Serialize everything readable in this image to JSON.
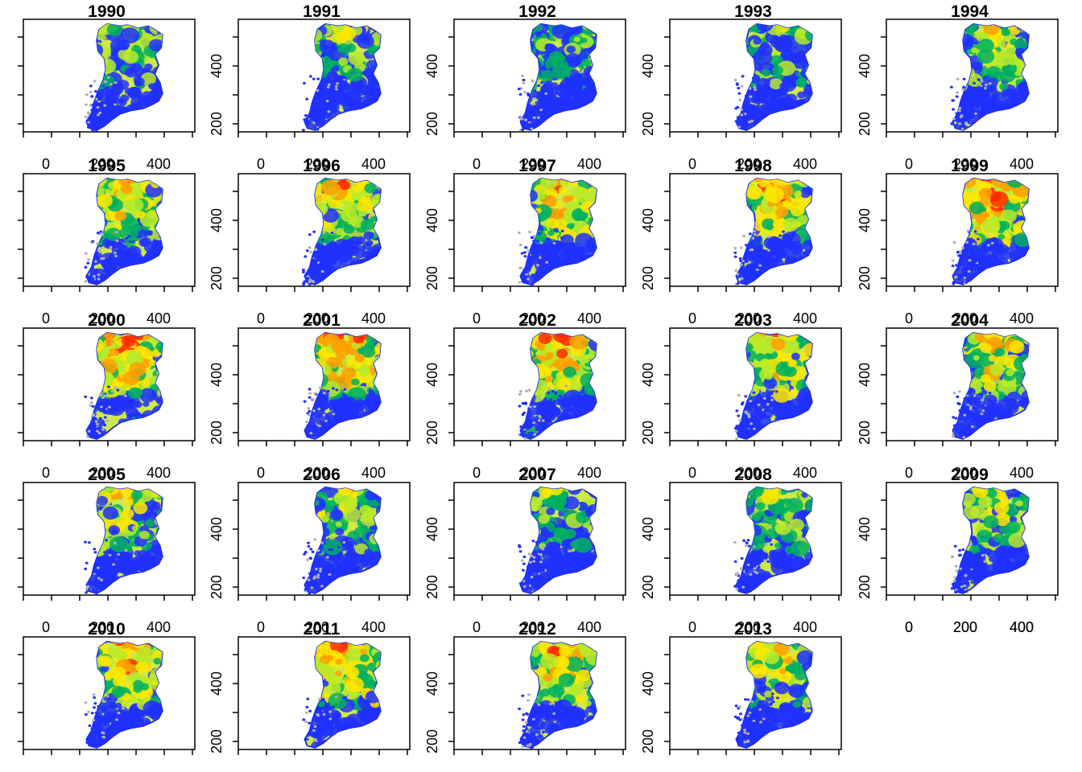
{
  "chart_data": {
    "type": "heatmap",
    "layout": {
      "rows": 5,
      "cols": 5
    },
    "panel_titles": [
      "1990",
      "1991",
      "1992",
      "1993",
      "1994",
      "1995",
      "1996",
      "1997",
      "1998",
      "1999",
      "2000",
      "2001",
      "2002",
      "2003",
      "2004",
      "2005",
      "2006",
      "2007",
      "2008",
      "2009",
      "2010",
      "2011",
      "2012",
      "2013"
    ],
    "x_ticks": [
      0,
      100,
      200,
      300,
      400,
      500
    ],
    "x_tick_labels": [
      "0",
      "200",
      "400"
    ],
    "x_labeled_values": [
      0,
      200,
      400
    ],
    "y_ticks": [
      200,
      300,
      400,
      500
    ],
    "y_tick_labels": [
      "200",
      "400"
    ],
    "y_labeled_values": [
      200,
      400
    ],
    "xlim": [
      -40,
      520
    ],
    "ylim": [
      180,
      570
    ],
    "grid": false,
    "legend": "none",
    "intensity_by_year": [
      0.3,
      0.3,
      0.2,
      0.25,
      0.45,
      0.6,
      0.6,
      0.65,
      0.7,
      0.72,
      0.75,
      0.75,
      0.7,
      0.6,
      0.55,
      0.5,
      0.4,
      0.3,
      0.3,
      0.4,
      0.65,
      0.7,
      0.65,
      0.55
    ],
    "color_scale": [
      "#b0b0b0",
      "#2030ff",
      "#00b060",
      "#b8ea2a",
      "#ffe600",
      "#ffa000",
      "#ff2a00"
    ]
  }
}
